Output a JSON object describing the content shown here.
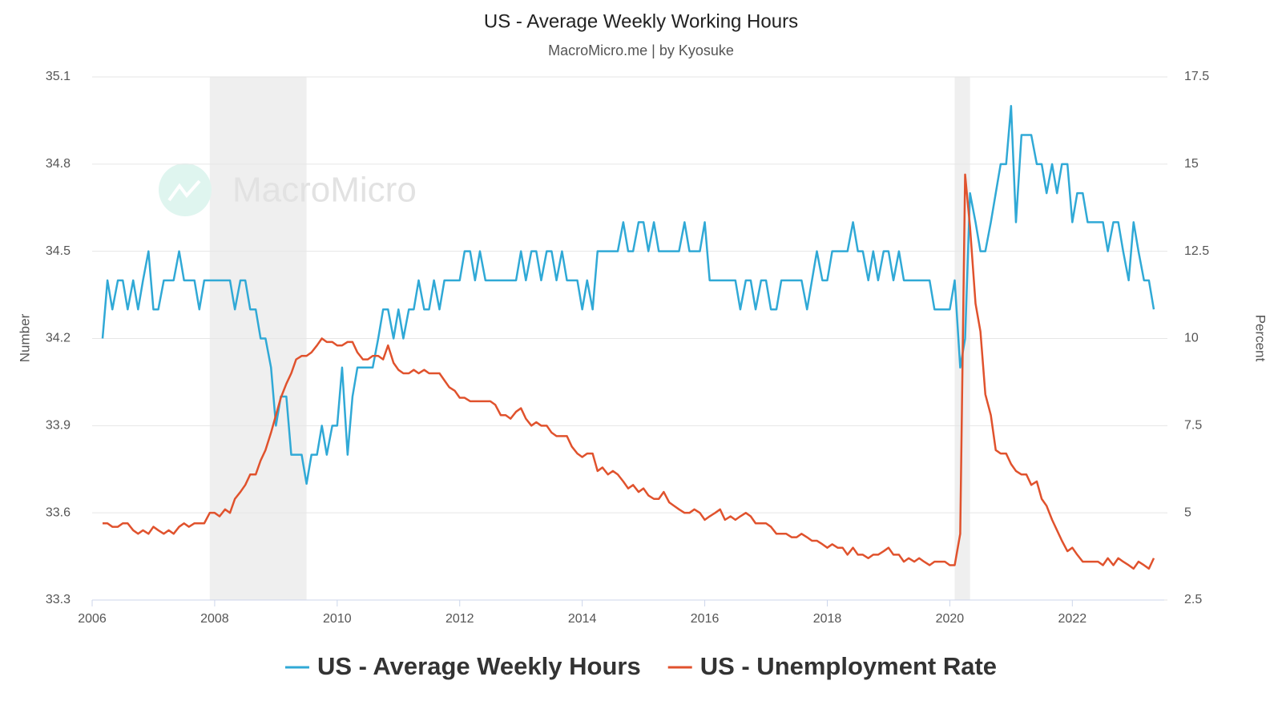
{
  "chart_data": {
    "type": "line",
    "title": "US - Average Weekly Working Hours",
    "subtitle": "MacroMicro.me | by Kyosuke",
    "watermark": "MacroMicro",
    "ylabel": "Number",
    "y2label": "Percent",
    "xlim": [
      2006,
      2023.5
    ],
    "xticks": [
      2006,
      2008,
      2010,
      2012,
      2014,
      2016,
      2018,
      2020,
      2022
    ],
    "ylim": [
      33.3,
      35.1
    ],
    "yticks": [
      33.3,
      33.6,
      33.9,
      34.2,
      34.5,
      34.8,
      35.1
    ],
    "y2lim": [
      2.5,
      17.5
    ],
    "y2ticks": [
      2.5,
      5,
      7.5,
      10,
      12.5,
      15,
      17.5
    ],
    "grid": true,
    "legend": "bottom",
    "shaded_ranges": [
      [
        2007.92,
        2009.5
      ],
      [
        2020.08,
        2020.33
      ]
    ],
    "x": [
      2006.17,
      2006.25,
      2006.33,
      2006.42,
      2006.5,
      2006.58,
      2006.67,
      2006.75,
      2006.83,
      2006.92,
      2007,
      2007.08,
      2007.17,
      2007.25,
      2007.33,
      2007.42,
      2007.5,
      2007.58,
      2007.67,
      2007.75,
      2007.83,
      2007.92,
      2008,
      2008.08,
      2008.17,
      2008.25,
      2008.33,
      2008.42,
      2008.5,
      2008.58,
      2008.67,
      2008.75,
      2008.83,
      2008.92,
      2009,
      2009.08,
      2009.17,
      2009.25,
      2009.33,
      2009.42,
      2009.5,
      2009.58,
      2009.67,
      2009.75,
      2009.83,
      2009.92,
      2010,
      2010.08,
      2010.17,
      2010.25,
      2010.33,
      2010.42,
      2010.5,
      2010.58,
      2010.67,
      2010.75,
      2010.83,
      2010.92,
      2011,
      2011.08,
      2011.17,
      2011.25,
      2011.33,
      2011.42,
      2011.5,
      2011.58,
      2011.67,
      2011.75,
      2011.83,
      2011.92,
      2012,
      2012.08,
      2012.17,
      2012.25,
      2012.33,
      2012.42,
      2012.5,
      2012.58,
      2012.67,
      2012.75,
      2012.83,
      2012.92,
      2013,
      2013.08,
      2013.17,
      2013.25,
      2013.33,
      2013.42,
      2013.5,
      2013.58,
      2013.67,
      2013.75,
      2013.83,
      2013.92,
      2014,
      2014.08,
      2014.17,
      2014.25,
      2014.33,
      2014.42,
      2014.5,
      2014.58,
      2014.67,
      2014.75,
      2014.83,
      2014.92,
      2015,
      2015.08,
      2015.17,
      2015.25,
      2015.33,
      2015.42,
      2015.5,
      2015.58,
      2015.67,
      2015.75,
      2015.83,
      2015.92,
      2016,
      2016.08,
      2016.17,
      2016.25,
      2016.33,
      2016.42,
      2016.5,
      2016.58,
      2016.67,
      2016.75,
      2016.83,
      2016.92,
      2017,
      2017.08,
      2017.17,
      2017.25,
      2017.33,
      2017.42,
      2017.5,
      2017.58,
      2017.67,
      2017.75,
      2017.83,
      2017.92,
      2018,
      2018.08,
      2018.17,
      2018.25,
      2018.33,
      2018.42,
      2018.5,
      2018.58,
      2018.67,
      2018.75,
      2018.83,
      2018.92,
      2019,
      2019.08,
      2019.17,
      2019.25,
      2019.33,
      2019.42,
      2019.5,
      2019.58,
      2019.67,
      2019.75,
      2019.83,
      2019.92,
      2020,
      2020.08,
      2020.17,
      2020.25,
      2020.33,
      2020.42,
      2020.5,
      2020.58,
      2020.67,
      2020.75,
      2020.83,
      2020.92,
      2021,
      2021.08,
      2021.17,
      2021.25,
      2021.33,
      2021.42,
      2021.5,
      2021.58,
      2021.67,
      2021.75,
      2021.83,
      2021.92,
      2022,
      2022.08,
      2022.17,
      2022.25,
      2022.33,
      2022.42,
      2022.5,
      2022.58,
      2022.67,
      2022.75,
      2022.83,
      2022.92,
      2023,
      2023.08,
      2023.17,
      2023.25,
      2023.33
    ],
    "series": [
      {
        "name": "US - Average Weekly Hours",
        "color": "#30a9d6",
        "axis": "y",
        "values": [
          34.2,
          34.4,
          34.3,
          34.4,
          34.4,
          34.3,
          34.4,
          34.3,
          34.4,
          34.5,
          34.3,
          34.3,
          34.4,
          34.4,
          34.4,
          34.5,
          34.4,
          34.4,
          34.4,
          34.3,
          34.4,
          34.4,
          34.4,
          34.4,
          34.4,
          34.4,
          34.3,
          34.4,
          34.4,
          34.3,
          34.3,
          34.2,
          34.2,
          34.1,
          33.9,
          34.0,
          34.0,
          33.8,
          33.8,
          33.8,
          33.7,
          33.8,
          33.8,
          33.9,
          33.8,
          33.9,
          33.9,
          34.1,
          33.8,
          34.0,
          34.1,
          34.1,
          34.1,
          34.1,
          34.2,
          34.3,
          34.3,
          34.2,
          34.3,
          34.2,
          34.3,
          34.3,
          34.4,
          34.3,
          34.3,
          34.4,
          34.3,
          34.4,
          34.4,
          34.4,
          34.4,
          34.5,
          34.5,
          34.4,
          34.5,
          34.4,
          34.4,
          34.4,
          34.4,
          34.4,
          34.4,
          34.4,
          34.5,
          34.4,
          34.5,
          34.5,
          34.4,
          34.5,
          34.5,
          34.4,
          34.5,
          34.4,
          34.4,
          34.4,
          34.3,
          34.4,
          34.3,
          34.5,
          34.5,
          34.5,
          34.5,
          34.5,
          34.6,
          34.5,
          34.5,
          34.6,
          34.6,
          34.5,
          34.6,
          34.5,
          34.5,
          34.5,
          34.5,
          34.5,
          34.6,
          34.5,
          34.5,
          34.5,
          34.6,
          34.4,
          34.4,
          34.4,
          34.4,
          34.4,
          34.4,
          34.3,
          34.4,
          34.4,
          34.3,
          34.4,
          34.4,
          34.3,
          34.3,
          34.4,
          34.4,
          34.4,
          34.4,
          34.4,
          34.3,
          34.4,
          34.5,
          34.4,
          34.4,
          34.5,
          34.5,
          34.5,
          34.5,
          34.6,
          34.5,
          34.5,
          34.4,
          34.5,
          34.4,
          34.5,
          34.5,
          34.4,
          34.5,
          34.4,
          34.4,
          34.4,
          34.4,
          34.4,
          34.4,
          34.3,
          34.3,
          34.3,
          34.3,
          34.4,
          34.1,
          34.2,
          34.7,
          34.6,
          34.5,
          34.5,
          34.6,
          34.7,
          34.8,
          34.8,
          35.0,
          34.6,
          34.9,
          34.9,
          34.9,
          34.8,
          34.8,
          34.7,
          34.8,
          34.7,
          34.8,
          34.8,
          34.6,
          34.7,
          34.7,
          34.6,
          34.6,
          34.6,
          34.6,
          34.5,
          34.6,
          34.6,
          34.5,
          34.4,
          34.6,
          34.5,
          34.4,
          34.4,
          34.3
        ]
      },
      {
        "name": "US - Unemployment Rate",
        "color": "#e0522d",
        "axis": "y2",
        "values": [
          4.7,
          4.7,
          4.6,
          4.6,
          4.7,
          4.7,
          4.5,
          4.4,
          4.5,
          4.4,
          4.6,
          4.5,
          4.4,
          4.5,
          4.4,
          4.6,
          4.7,
          4.6,
          4.7,
          4.7,
          4.7,
          5.0,
          5.0,
          4.9,
          5.1,
          5.0,
          5.4,
          5.6,
          5.8,
          6.1,
          6.1,
          6.5,
          6.8,
          7.3,
          7.8,
          8.3,
          8.7,
          9.0,
          9.4,
          9.5,
          9.5,
          9.6,
          9.8,
          10.0,
          9.9,
          9.9,
          9.8,
          9.8,
          9.9,
          9.9,
          9.6,
          9.4,
          9.4,
          9.5,
          9.5,
          9.4,
          9.8,
          9.3,
          9.1,
          9.0,
          9.0,
          9.1,
          9.0,
          9.1,
          9.0,
          9.0,
          9.0,
          8.8,
          8.6,
          8.5,
          8.3,
          8.3,
          8.2,
          8.2,
          8.2,
          8.2,
          8.2,
          8.1,
          7.8,
          7.8,
          7.7,
          7.9,
          8.0,
          7.7,
          7.5,
          7.6,
          7.5,
          7.5,
          7.3,
          7.2,
          7.2,
          7.2,
          6.9,
          6.7,
          6.6,
          6.7,
          6.7,
          6.2,
          6.3,
          6.1,
          6.2,
          6.1,
          5.9,
          5.7,
          5.8,
          5.6,
          5.7,
          5.5,
          5.4,
          5.4,
          5.6,
          5.3,
          5.2,
          5.1,
          5.0,
          5.0,
          5.1,
          5.0,
          4.8,
          4.9,
          5.0,
          5.1,
          4.8,
          4.9,
          4.8,
          4.9,
          5.0,
          4.9,
          4.7,
          4.7,
          4.7,
          4.6,
          4.4,
          4.4,
          4.4,
          4.3,
          4.3,
          4.4,
          4.3,
          4.2,
          4.2,
          4.1,
          4.0,
          4.1,
          4.0,
          4.0,
          3.8,
          4.0,
          3.8,
          3.8,
          3.7,
          3.8,
          3.8,
          3.9,
          4.0,
          3.8,
          3.8,
          3.6,
          3.7,
          3.6,
          3.7,
          3.6,
          3.5,
          3.6,
          3.6,
          3.6,
          3.5,
          3.5,
          4.4,
          14.7,
          13.2,
          11.0,
          10.2,
          8.4,
          7.8,
          6.8,
          6.7,
          6.7,
          6.4,
          6.2,
          6.1,
          6.1,
          5.8,
          5.9,
          5.4,
          5.2,
          4.8,
          4.5,
          4.2,
          3.9,
          4.0,
          3.8,
          3.6,
          3.6,
          3.6,
          3.6,
          3.5,
          3.7,
          3.5,
          3.7,
          3.6,
          3.5,
          3.4,
          3.6,
          3.5,
          3.4,
          3.7
        ]
      }
    ]
  }
}
